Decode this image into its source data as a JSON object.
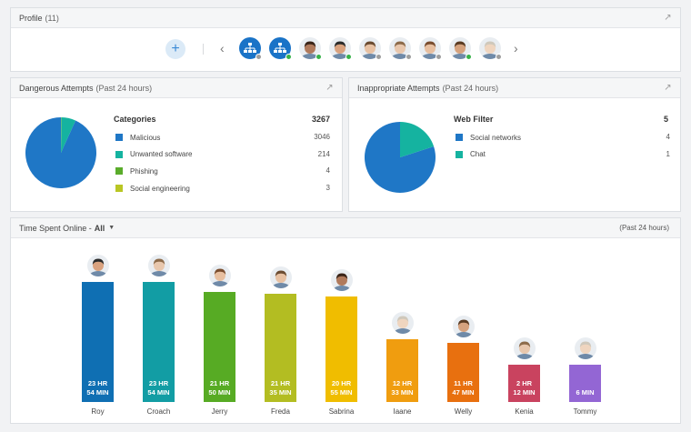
{
  "profile": {
    "title": "Profile",
    "count": "(11)",
    "avatars": [
      {
        "type": "group",
        "status": "#9e9e9e"
      },
      {
        "type": "group",
        "status": "#38b24a"
      },
      {
        "type": "person",
        "skin": "#b07a5c",
        "hair": "#3a2418",
        "status": "#38b24a"
      },
      {
        "type": "person",
        "skin": "#d9a27f",
        "hair": "#2b2b2b",
        "status": "#38b24a"
      },
      {
        "type": "person",
        "skin": "#e7c1a3",
        "hair": "#6b4b30",
        "status": "#9e9e9e"
      },
      {
        "type": "person",
        "skin": "#e8c7ad",
        "hair": "#8d6b4a",
        "status": "#9e9e9e"
      },
      {
        "type": "person",
        "skin": "#e7bfa0",
        "hair": "#7a4d2e",
        "status": "#9e9e9e"
      },
      {
        "type": "person",
        "skin": "#d5a27e",
        "hair": "#5a3b22",
        "status": "#38b24a"
      },
      {
        "type": "person",
        "skin": "#efd5bf",
        "hair": "#cfc8bb",
        "status": "#9e9e9e"
      }
    ]
  },
  "dangerous": {
    "title": "Dangerous Attempts",
    "subtitle": "(Past 24 hours)",
    "legend_title": "Categories",
    "total": "3267",
    "items": [
      {
        "label": "Malicious",
        "value": "3046",
        "color": "#1f77c6"
      },
      {
        "label": "Unwanted software",
        "value": "214",
        "color": "#15b3a0"
      },
      {
        "label": "Phishing",
        "value": "4",
        "color": "#5aac2b"
      },
      {
        "label": "Social engineering",
        "value": "3",
        "color": "#b9c624"
      }
    ]
  },
  "inappropriate": {
    "title": "Inappropriate Attempts",
    "subtitle": "(Past 24 hours)",
    "legend_title": "Web Filter",
    "total": "5",
    "items": [
      {
        "label": "Social networks",
        "value": "4",
        "color": "#1f77c6"
      },
      {
        "label": "Chat",
        "value": "1",
        "color": "#15b3a0"
      }
    ]
  },
  "time": {
    "title": "Time Spent Online -",
    "filter": "All",
    "period": "(Past 24 hours)"
  },
  "chart_data": {
    "type": "bar",
    "categories": [
      "Roy",
      "Croach",
      "Jerry",
      "Freda",
      "Sabrina",
      "Iaane",
      "Welly",
      "Kenia",
      "Tommy"
    ],
    "values_minutes": [
      1434,
      1434,
      1310,
      1295,
      1255,
      753,
      707,
      132,
      6
    ],
    "labels": [
      [
        "23 HR",
        "54 MIN"
      ],
      [
        "23 HR",
        "54 MIN"
      ],
      [
        "21 HR",
        "50 MIN"
      ],
      [
        "21 HR",
        "35 MIN"
      ],
      [
        "20 HR",
        "55 MIN"
      ],
      [
        "12 HR",
        "33 MIN"
      ],
      [
        "11 HR",
        "47 MIN"
      ],
      [
        "2 HR",
        "12 MIN"
      ],
      [
        "6 MIN"
      ]
    ],
    "colors": [
      "#0f6fb3",
      "#129da4",
      "#57ab24",
      "#b3bd22",
      "#f0bd00",
      "#f09d0f",
      "#e8700f",
      "#c9435f",
      "#9366d4"
    ],
    "avatar_skin": [
      "#d9a27f",
      "#e8c7ad",
      "#e7bfa0",
      "#e7c1a3",
      "#b07a5c",
      "#efd5bf",
      "#d5a27e",
      "#e8c7ad",
      "#efd5bf"
    ],
    "avatar_hair": [
      "#2b2b2b",
      "#8d6b4a",
      "#7a4d2e",
      "#6b4b30",
      "#3a2418",
      "#cfc8bb",
      "#5a3b22",
      "#8d6b4a",
      "#cfc8bb"
    ]
  }
}
